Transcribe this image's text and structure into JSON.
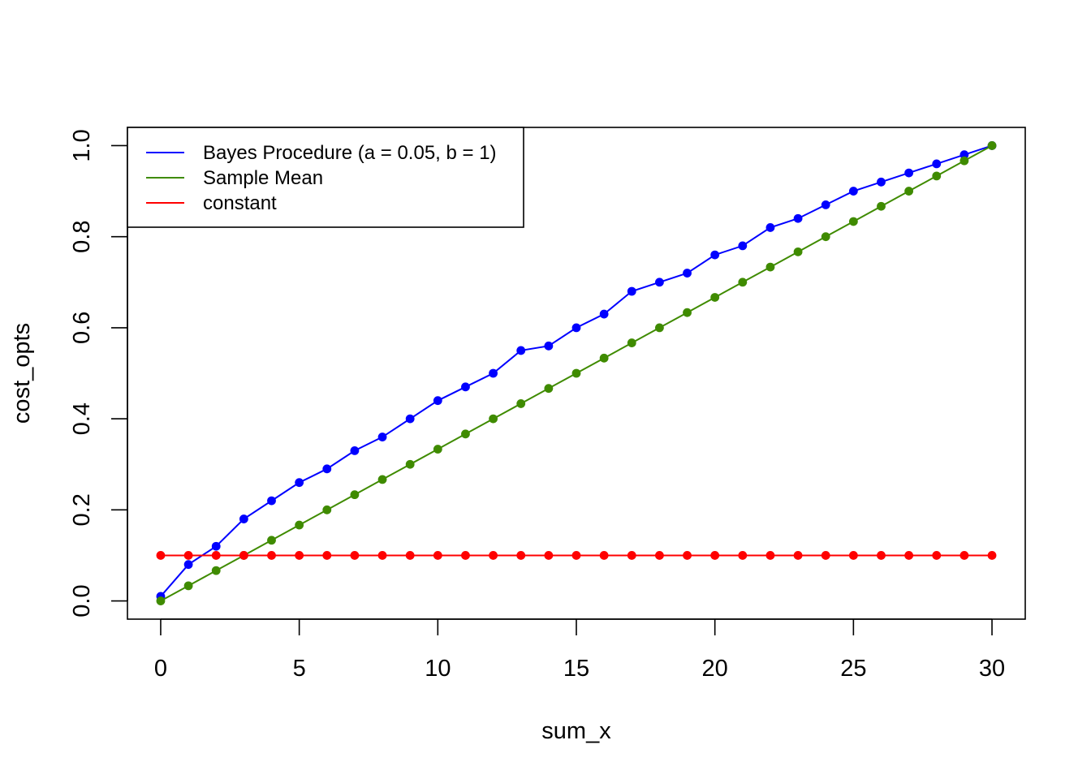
{
  "chart_data": {
    "type": "line",
    "title": "",
    "xlabel": "sum_x",
    "ylabel": "cost_opts",
    "xlim": [
      -1.2,
      31.2
    ],
    "ylim": [
      -0.04,
      1.04
    ],
    "x_ticks": [
      0,
      5,
      10,
      15,
      20,
      25,
      30
    ],
    "y_ticks": [
      0.0,
      0.2,
      0.4,
      0.6,
      0.8,
      1.0
    ],
    "y_tick_labels": [
      "0.0",
      "0.2",
      "0.4",
      "0.6",
      "0.8",
      "1.0"
    ],
    "x": [
      0,
      1,
      2,
      3,
      4,
      5,
      6,
      7,
      8,
      9,
      10,
      11,
      12,
      13,
      14,
      15,
      16,
      17,
      18,
      19,
      20,
      21,
      22,
      23,
      24,
      25,
      26,
      27,
      28,
      29,
      30
    ],
    "grid": false,
    "legend_position": "top-left",
    "series": [
      {
        "name": "Bayes Procedure (a = 0.05, b = 1)",
        "color": "#0000ff",
        "values": [
          0.01,
          0.08,
          0.12,
          0.18,
          0.22,
          0.26,
          0.29,
          0.33,
          0.36,
          0.4,
          0.44,
          0.47,
          0.5,
          0.55,
          0.56,
          0.6,
          0.63,
          0.68,
          0.7,
          0.72,
          0.76,
          0.78,
          0.82,
          0.84,
          0.87,
          0.9,
          0.92,
          0.94,
          0.96,
          0.98,
          1.0
        ]
      },
      {
        "name": "Sample Mean",
        "color": "#3f8b00",
        "values": [
          0.0,
          0.0333,
          0.0667,
          0.1,
          0.1333,
          0.1667,
          0.2,
          0.2333,
          0.2667,
          0.3,
          0.3333,
          0.3667,
          0.4,
          0.4333,
          0.4667,
          0.5,
          0.5333,
          0.5667,
          0.6,
          0.6333,
          0.6667,
          0.7,
          0.7333,
          0.7667,
          0.8,
          0.8333,
          0.8667,
          0.9,
          0.9333,
          0.9667,
          1.0
        ]
      },
      {
        "name": "constant",
        "color": "#ff0000",
        "values": [
          0.1,
          0.1,
          0.1,
          0.1,
          0.1,
          0.1,
          0.1,
          0.1,
          0.1,
          0.1,
          0.1,
          0.1,
          0.1,
          0.1,
          0.1,
          0.1,
          0.1,
          0.1,
          0.1,
          0.1,
          0.1,
          0.1,
          0.1,
          0.1,
          0.1,
          0.1,
          0.1,
          0.1,
          0.1,
          0.1,
          0.1
        ]
      }
    ]
  }
}
